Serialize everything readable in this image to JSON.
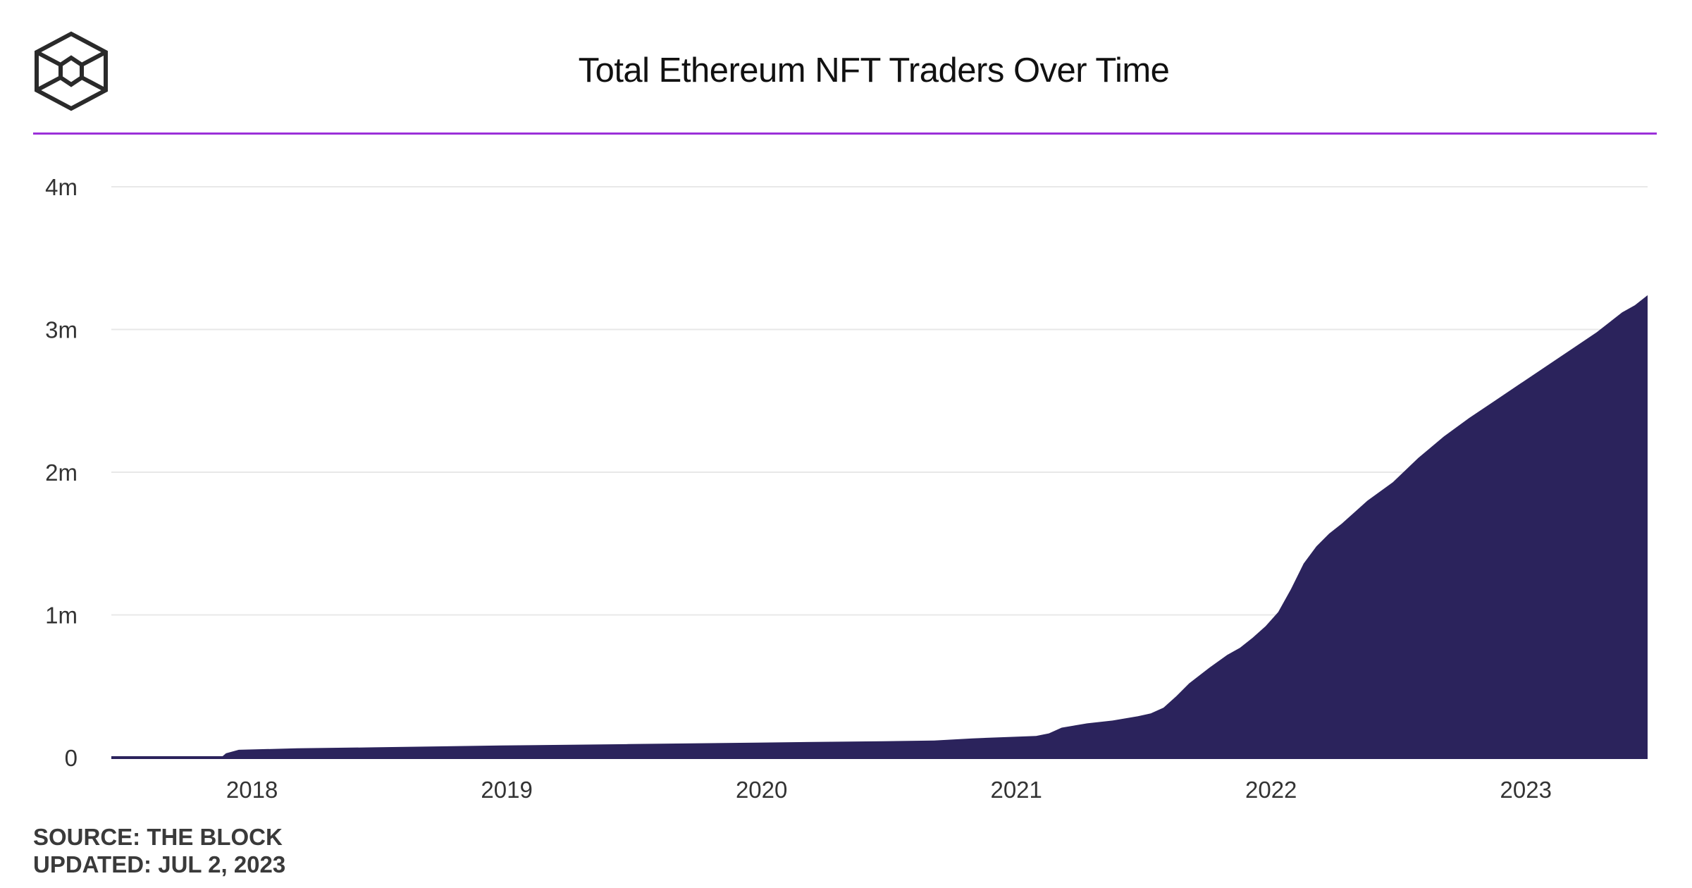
{
  "header": {
    "title": "Total Ethereum NFT Traders Over Time",
    "logo_icon": "the-block-cube-logo-icon"
  },
  "colors": {
    "area_fill": "#2b235c",
    "accent_rule": "#9b30d9",
    "grid": "#e8e8e8",
    "text": "#333333"
  },
  "footer": {
    "source": "SOURCE: THE BLOCK",
    "updated": "UPDATED: JUL 2, 2023"
  },
  "chart_data": {
    "type": "area",
    "title": "Total Ethereum NFT Traders Over Time",
    "xlabel": "",
    "ylabel": "",
    "x_range": [
      2017.47,
      2023.5
    ],
    "ylim": [
      0,
      4000000
    ],
    "grid": true,
    "y_ticks": [
      {
        "value": 0,
        "label": "0"
      },
      {
        "value": 1000000,
        "label": "1m"
      },
      {
        "value": 2000000,
        "label": "2m"
      },
      {
        "value": 3000000,
        "label": "3m"
      },
      {
        "value": 4000000,
        "label": "4m"
      }
    ],
    "x_ticks": [
      {
        "value": 2018,
        "label": "2018"
      },
      {
        "value": 2019,
        "label": "2019"
      },
      {
        "value": 2020,
        "label": "2020"
      },
      {
        "value": 2021,
        "label": "2021"
      },
      {
        "value": 2022,
        "label": "2022"
      },
      {
        "value": 2023,
        "label": "2023"
      }
    ],
    "series": [
      {
        "points": [
          [
            2017.47,
            0
          ],
          [
            2017.9,
            0
          ],
          [
            2017.92,
            30000
          ],
          [
            2017.97,
            55000
          ],
          [
            2018.2,
            65000
          ],
          [
            2018.5,
            72000
          ],
          [
            2019.0,
            85000
          ],
          [
            2019.5,
            95000
          ],
          [
            2020.0,
            105000
          ],
          [
            2020.5,
            115000
          ],
          [
            2020.7,
            120000
          ],
          [
            2020.85,
            135000
          ],
          [
            2021.0,
            145000
          ],
          [
            2021.1,
            152000
          ],
          [
            2021.15,
            170000
          ],
          [
            2021.2,
            210000
          ],
          [
            2021.3,
            240000
          ],
          [
            2021.4,
            260000
          ],
          [
            2021.5,
            290000
          ],
          [
            2021.55,
            310000
          ],
          [
            2021.6,
            350000
          ],
          [
            2021.65,
            430000
          ],
          [
            2021.7,
            520000
          ],
          [
            2021.78,
            630000
          ],
          [
            2021.85,
            720000
          ],
          [
            2021.9,
            770000
          ],
          [
            2021.95,
            840000
          ],
          [
            2022.0,
            920000
          ],
          [
            2022.05,
            1020000
          ],
          [
            2022.1,
            1180000
          ],
          [
            2022.15,
            1360000
          ],
          [
            2022.2,
            1480000
          ],
          [
            2022.25,
            1570000
          ],
          [
            2022.3,
            1640000
          ],
          [
            2022.35,
            1720000
          ],
          [
            2022.4,
            1800000
          ],
          [
            2022.5,
            1930000
          ],
          [
            2022.6,
            2100000
          ],
          [
            2022.7,
            2250000
          ],
          [
            2022.8,
            2380000
          ],
          [
            2022.9,
            2500000
          ],
          [
            2023.0,
            2620000
          ],
          [
            2023.1,
            2740000
          ],
          [
            2023.2,
            2860000
          ],
          [
            2023.3,
            2980000
          ],
          [
            2023.35,
            3050000
          ],
          [
            2023.4,
            3120000
          ],
          [
            2023.45,
            3170000
          ],
          [
            2023.5,
            3240000
          ]
        ]
      }
    ]
  }
}
